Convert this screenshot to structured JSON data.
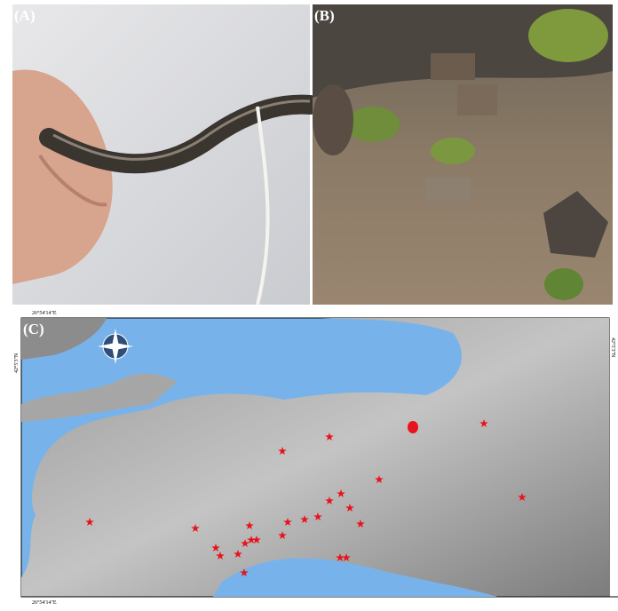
{
  "panels": [
    {
      "label": "(A)"
    },
    {
      "label": "(B)"
    },
    {
      "label": "(C)"
    }
  ],
  "map": {
    "top_label": "26°54'14\"E",
    "bottom_label": "26°54'14\"E",
    "left_label": "42°5'3\"N",
    "right_label": "42°5'3\"N"
  }
}
